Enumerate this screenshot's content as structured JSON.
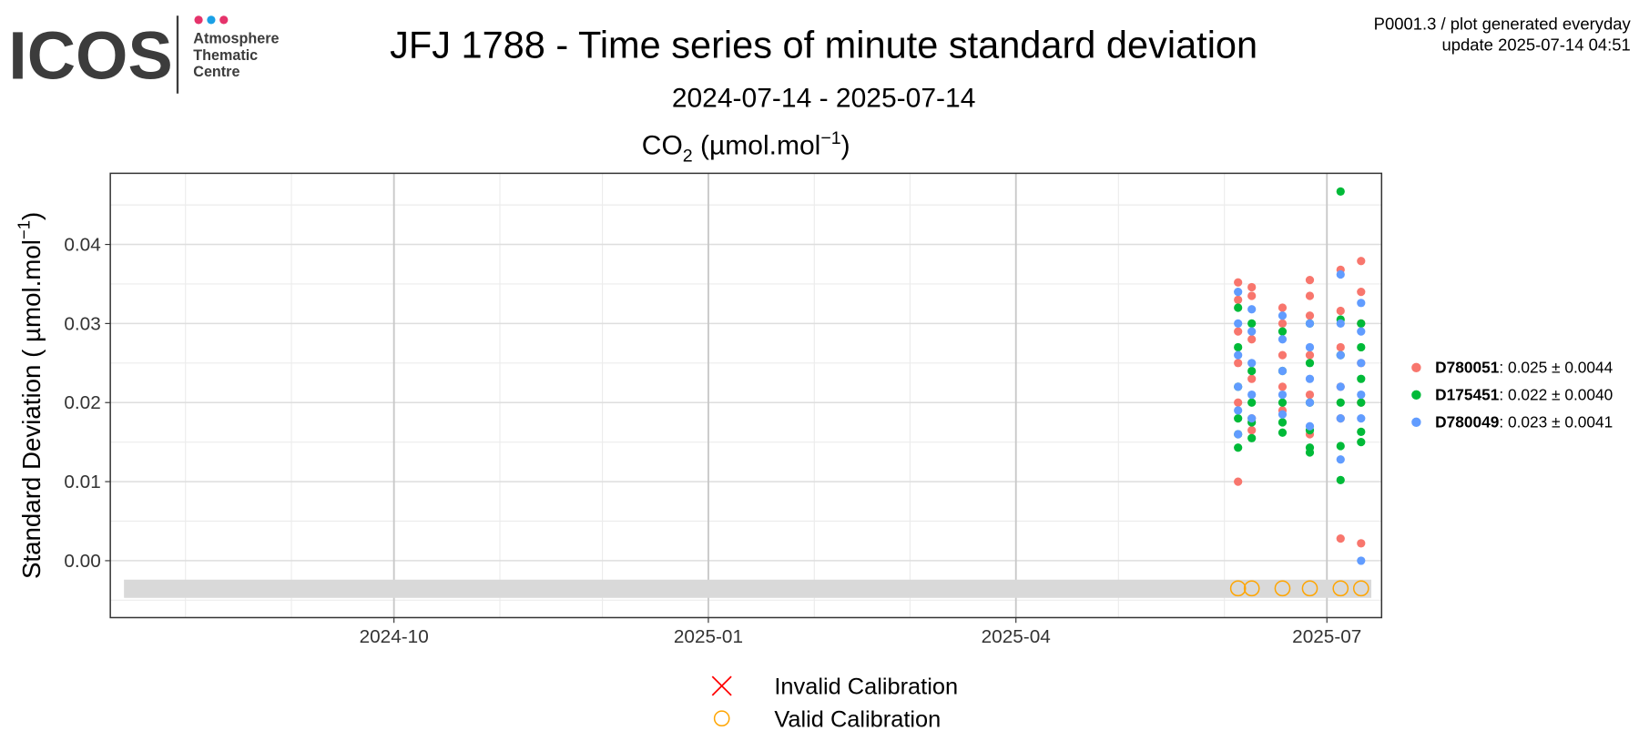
{
  "header": {
    "logo": "ICOS",
    "logo_lines": [
      "Atmosphere",
      "Thematic",
      "Centre"
    ],
    "info": [
      "P0001.3 / plot generated everyday",
      "update  2025-07-14 04:51"
    ]
  },
  "chart_data": {
    "type": "scatter",
    "title": "JFJ 1788 - Time series of minute standard deviation",
    "subtitle": "2024-07-14 - 2025-07-14",
    "panel_title": [
      "CO",
      "2",
      " (µmol.mol",
      "−1",
      ")"
    ],
    "y_label": [
      "Standard Deviation ( µmol.mol",
      "−1",
      ")"
    ],
    "xlim": [
      "2024-07-10",
      "2025-07-17"
    ],
    "xticks": [
      {
        "value": "2024-10-01",
        "label": "2024-10"
      },
      {
        "value": "2025-01-01",
        "label": "2025-01"
      },
      {
        "value": "2025-04-01",
        "label": "2025-04"
      },
      {
        "value": "2025-07-01",
        "label": "2025-07"
      }
    ],
    "xminorticks": [
      "2024-08-01",
      "2024-09-01",
      "2024-11-01",
      "2024-12-01",
      "2025-02-01",
      "2025-03-01",
      "2025-05-01",
      "2025-06-01"
    ],
    "ylim": [
      -0.0072,
      0.049
    ],
    "yticks": [
      {
        "value": 0,
        "label": "0.00"
      },
      {
        "value": 0.01,
        "label": "0.01"
      },
      {
        "value": 0.02,
        "label": "0.02"
      },
      {
        "value": 0.03,
        "label": "0.03"
      },
      {
        "value": 0.04,
        "label": "0.04"
      }
    ],
    "yminorticks": [
      -0.005,
      0.005,
      0.015,
      0.025,
      0.035,
      0.045
    ],
    "grid": true,
    "legend_position": "right",
    "series": [
      {
        "name": "D780051",
        "summary": ": 0.025 ± 0.0044",
        "color": "#f8766d",
        "x": [
          "2025-06-05",
          "2025-06-05",
          "2025-06-05",
          "2025-06-05",
          "2025-06-05",
          "2025-06-05",
          "2025-06-09",
          "2025-06-09",
          "2025-06-09",
          "2025-06-09",
          "2025-06-09",
          "2025-06-09",
          "2025-06-18",
          "2025-06-18",
          "2025-06-18",
          "2025-06-18",
          "2025-06-18",
          "2025-06-26",
          "2025-06-26",
          "2025-06-26",
          "2025-06-26",
          "2025-06-26",
          "2025-06-26",
          "2025-07-05",
          "2025-07-05",
          "2025-07-05",
          "2025-07-05",
          "2025-07-05",
          "2025-07-05",
          "2025-07-11",
          "2025-07-11",
          "2025-07-11",
          "2025-07-11",
          "2025-07-11",
          "2025-07-11"
        ],
        "values": [
          0.0352,
          0.033,
          0.029,
          0.025,
          0.02,
          0.01,
          0.0346,
          0.0335,
          0.028,
          0.023,
          0.018,
          0.0165,
          0.032,
          0.03,
          0.026,
          0.022,
          0.019,
          0.0355,
          0.0335,
          0.031,
          0.026,
          0.021,
          0.016,
          0.0368,
          0.0316,
          0.027,
          0.022,
          0.018,
          0.0028,
          0.0379,
          0.034,
          0.03,
          0.025,
          0.02,
          0.0022
        ]
      },
      {
        "name": "D175451",
        "summary": ": 0.022 ± 0.0040",
        "color": "#00ba38",
        "x": [
          "2025-06-05",
          "2025-06-05",
          "2025-06-05",
          "2025-06-05",
          "2025-06-05",
          "2025-06-05",
          "2025-06-09",
          "2025-06-09",
          "2025-06-09",
          "2025-06-09",
          "2025-06-09",
          "2025-06-18",
          "2025-06-18",
          "2025-06-18",
          "2025-06-18",
          "2025-06-18",
          "2025-06-26",
          "2025-06-26",
          "2025-06-26",
          "2025-06-26",
          "2025-06-26",
          "2025-06-26",
          "2025-07-05",
          "2025-07-05",
          "2025-07-05",
          "2025-07-05",
          "2025-07-05",
          "2025-07-05",
          "2025-07-11",
          "2025-07-11",
          "2025-07-11",
          "2025-07-11",
          "2025-07-11",
          "2025-07-11"
        ],
        "values": [
          0.032,
          0.027,
          0.022,
          0.018,
          0.016,
          0.0143,
          0.03,
          0.024,
          0.02,
          0.0175,
          0.0155,
          0.029,
          0.024,
          0.02,
          0.0175,
          0.0162,
          0.03,
          0.025,
          0.02,
          0.0165,
          0.0143,
          0.0137,
          0.0467,
          0.0305,
          0.026,
          0.02,
          0.0145,
          0.0102,
          0.03,
          0.027,
          0.023,
          0.02,
          0.0163,
          0.015
        ]
      },
      {
        "name": "D780049",
        "summary": ": 0.023 ± 0.0041",
        "color": "#619cff",
        "x": [
          "2025-06-05",
          "2025-06-05",
          "2025-06-05",
          "2025-06-05",
          "2025-06-05",
          "2025-06-05",
          "2025-06-09",
          "2025-06-09",
          "2025-06-09",
          "2025-06-09",
          "2025-06-09",
          "2025-06-18",
          "2025-06-18",
          "2025-06-18",
          "2025-06-18",
          "2025-06-18",
          "2025-06-26",
          "2025-06-26",
          "2025-06-26",
          "2025-06-26",
          "2025-06-26",
          "2025-07-05",
          "2025-07-05",
          "2025-07-05",
          "2025-07-05",
          "2025-07-05",
          "2025-07-05",
          "2025-07-11",
          "2025-07-11",
          "2025-07-11",
          "2025-07-11",
          "2025-07-11",
          "2025-07-11"
        ],
        "values": [
          0.034,
          0.03,
          0.026,
          0.022,
          0.019,
          0.016,
          0.0318,
          0.029,
          0.025,
          0.021,
          0.018,
          0.031,
          0.028,
          0.024,
          0.021,
          0.0185,
          0.03,
          0.027,
          0.023,
          0.02,
          0.017,
          0.0362,
          0.03,
          0.026,
          0.022,
          0.018,
          0.0128,
          0.0326,
          0.029,
          0.025,
          0.021,
          0.018,
          0
        ]
      }
    ],
    "calibration_band": {
      "x": [
        "2024-07-14",
        "2025-07-14"
      ],
      "y": [
        -0.0047,
        -0.0024
      ],
      "color": "#d9d9d9"
    },
    "calibrations": [
      {
        "name": "Invalid Calibration",
        "color": "#ff0000",
        "x": [],
        "values": []
      },
      {
        "name": "Valid Calibration",
        "color": "#ffa500",
        "x": [
          "2025-06-05",
          "2025-06-09",
          "2025-06-18",
          "2025-06-26",
          "2025-07-05",
          "2025-07-11"
        ],
        "values": [
          -0.0035,
          -0.0035,
          -0.0035,
          -0.0035,
          -0.0035,
          -0.0035
        ]
      }
    ]
  }
}
